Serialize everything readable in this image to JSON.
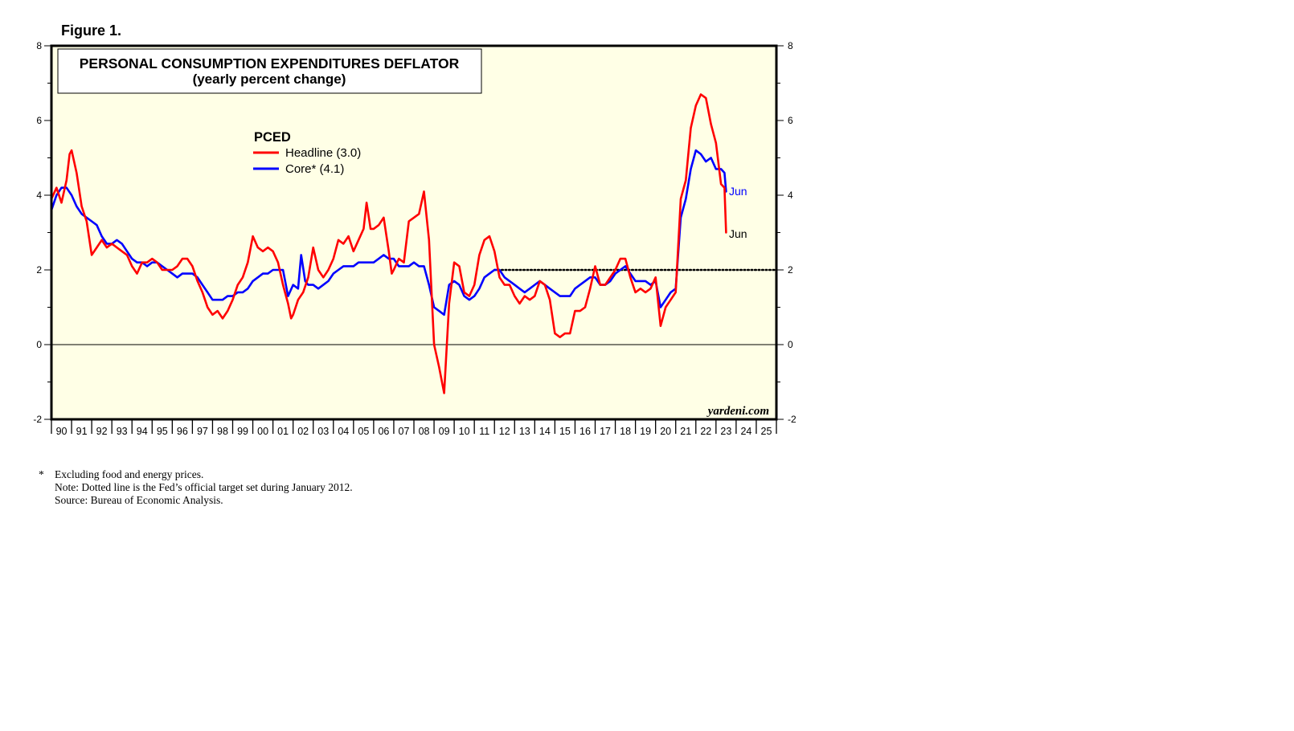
{
  "figure_label": "Figure 1.",
  "footnotes": {
    "star": "*",
    "line1": "Excluding food and energy prices.",
    "line2": "Note: Dotted line is the Fed’s official target set during January 2012.",
    "line3": "Source: Bureau of Economic Analysis."
  },
  "colors": {
    "headline": "#ff0000",
    "core": "#0000ff",
    "plot_bg": "#ffffe6",
    "frame": "#000000"
  },
  "chart_data": {
    "type": "line",
    "title": "PERSONAL CONSUMPTION EXPENDITURES DEFLATOR",
    "subtitle": "(yearly percent change)",
    "legend_title": "PCED",
    "legend_position": "upper-left",
    "xlim": [
      1990,
      2026
    ],
    "ylim": [
      -2,
      8
    ],
    "y_ticks": [
      -2,
      0,
      2,
      4,
      6,
      8
    ],
    "year_labels": [
      "90",
      "91",
      "92",
      "93",
      "94",
      "95",
      "96",
      "97",
      "98",
      "99",
      "00",
      "01",
      "02",
      "03",
      "04",
      "05",
      "06",
      "07",
      "08",
      "09",
      "10",
      "11",
      "12",
      "13",
      "14",
      "15",
      "16",
      "17",
      "18",
      "19",
      "20",
      "21",
      "22",
      "23",
      "24",
      "25"
    ],
    "zero_line": 0,
    "target": {
      "value": 2,
      "from": 2012.0,
      "to": 2026
    },
    "watermark": "yardeni.com",
    "series": [
      {
        "name": "Headline",
        "legend_label": "Headline (3.0)",
        "end_label": "Jun",
        "color": "#ff0000",
        "points": [
          [
            1990.0,
            3.9
          ],
          [
            1990.25,
            4.2
          ],
          [
            1990.5,
            3.8
          ],
          [
            1990.75,
            4.4
          ],
          [
            1990.9,
            5.1
          ],
          [
            1991.0,
            5.2
          ],
          [
            1991.25,
            4.6
          ],
          [
            1991.5,
            3.7
          ],
          [
            1991.75,
            3.3
          ],
          [
            1992.0,
            2.4
          ],
          [
            1992.25,
            2.6
          ],
          [
            1992.5,
            2.8
          ],
          [
            1992.75,
            2.6
          ],
          [
            1993.0,
            2.7
          ],
          [
            1993.25,
            2.6
          ],
          [
            1993.5,
            2.5
          ],
          [
            1993.75,
            2.4
          ],
          [
            1994.0,
            2.1
          ],
          [
            1994.25,
            1.9
          ],
          [
            1994.5,
            2.2
          ],
          [
            1994.75,
            2.2
          ],
          [
            1995.0,
            2.3
          ],
          [
            1995.25,
            2.2
          ],
          [
            1995.5,
            2.0
          ],
          [
            1995.75,
            2.0
          ],
          [
            1996.0,
            2.0
          ],
          [
            1996.25,
            2.1
          ],
          [
            1996.5,
            2.3
          ],
          [
            1996.75,
            2.3
          ],
          [
            1997.0,
            2.1
          ],
          [
            1997.25,
            1.7
          ],
          [
            1997.5,
            1.4
          ],
          [
            1997.75,
            1.0
          ],
          [
            1998.0,
            0.8
          ],
          [
            1998.25,
            0.9
          ],
          [
            1998.5,
            0.7
          ],
          [
            1998.75,
            0.9
          ],
          [
            1999.0,
            1.2
          ],
          [
            1999.25,
            1.6
          ],
          [
            1999.5,
            1.8
          ],
          [
            1999.75,
            2.2
          ],
          [
            2000.0,
            2.9
          ],
          [
            2000.25,
            2.6
          ],
          [
            2000.5,
            2.5
          ],
          [
            2000.75,
            2.6
          ],
          [
            2001.0,
            2.5
          ],
          [
            2001.25,
            2.2
          ],
          [
            2001.5,
            1.6
          ],
          [
            2001.75,
            1.1
          ],
          [
            2001.9,
            0.7
          ],
          [
            2002.0,
            0.8
          ],
          [
            2002.25,
            1.2
          ],
          [
            2002.5,
            1.4
          ],
          [
            2002.75,
            1.8
          ],
          [
            2003.0,
            2.6
          ],
          [
            2003.25,
            2.0
          ],
          [
            2003.5,
            1.8
          ],
          [
            2003.75,
            2.0
          ],
          [
            2004.0,
            2.3
          ],
          [
            2004.25,
            2.8
          ],
          [
            2004.5,
            2.7
          ],
          [
            2004.75,
            2.9
          ],
          [
            2005.0,
            2.5
          ],
          [
            2005.25,
            2.8
          ],
          [
            2005.5,
            3.1
          ],
          [
            2005.65,
            3.8
          ],
          [
            2005.85,
            3.1
          ],
          [
            2006.0,
            3.1
          ],
          [
            2006.25,
            3.2
          ],
          [
            2006.5,
            3.4
          ],
          [
            2006.75,
            2.5
          ],
          [
            2006.9,
            1.9
          ],
          [
            2007.0,
            2.0
          ],
          [
            2007.25,
            2.3
          ],
          [
            2007.5,
            2.2
          ],
          [
            2007.75,
            3.3
          ],
          [
            2008.0,
            3.4
          ],
          [
            2008.25,
            3.5
          ],
          [
            2008.5,
            4.1
          ],
          [
            2008.75,
            2.8
          ],
          [
            2009.0,
            0.0
          ],
          [
            2009.25,
            -0.6
          ],
          [
            2009.5,
            -1.3
          ],
          [
            2009.75,
            1.1
          ],
          [
            2010.0,
            2.2
          ],
          [
            2010.25,
            2.1
          ],
          [
            2010.5,
            1.4
          ],
          [
            2010.75,
            1.3
          ],
          [
            2011.0,
            1.6
          ],
          [
            2011.25,
            2.4
          ],
          [
            2011.5,
            2.8
          ],
          [
            2011.75,
            2.9
          ],
          [
            2012.0,
            2.5
          ],
          [
            2012.25,
            1.8
          ],
          [
            2012.5,
            1.6
          ],
          [
            2012.75,
            1.6
          ],
          [
            2013.0,
            1.3
          ],
          [
            2013.25,
            1.1
          ],
          [
            2013.5,
            1.3
          ],
          [
            2013.75,
            1.2
          ],
          [
            2014.0,
            1.3
          ],
          [
            2014.25,
            1.7
          ],
          [
            2014.5,
            1.6
          ],
          [
            2014.75,
            1.2
          ],
          [
            2015.0,
            0.3
          ],
          [
            2015.25,
            0.2
          ],
          [
            2015.5,
            0.3
          ],
          [
            2015.75,
            0.3
          ],
          [
            2016.0,
            0.9
          ],
          [
            2016.25,
            0.9
          ],
          [
            2016.5,
            1.0
          ],
          [
            2016.75,
            1.5
          ],
          [
            2017.0,
            2.1
          ],
          [
            2017.25,
            1.6
          ],
          [
            2017.5,
            1.6
          ],
          [
            2017.75,
            1.8
          ],
          [
            2018.0,
            2.0
          ],
          [
            2018.25,
            2.3
          ],
          [
            2018.5,
            2.3
          ],
          [
            2018.75,
            1.8
          ],
          [
            2019.0,
            1.4
          ],
          [
            2019.25,
            1.5
          ],
          [
            2019.5,
            1.4
          ],
          [
            2019.75,
            1.5
          ],
          [
            2020.0,
            1.8
          ],
          [
            2020.25,
            0.5
          ],
          [
            2020.5,
            1.0
          ],
          [
            2020.75,
            1.2
          ],
          [
            2021.0,
            1.4
          ],
          [
            2021.25,
            3.9
          ],
          [
            2021.5,
            4.4
          ],
          [
            2021.75,
            5.8
          ],
          [
            2022.0,
            6.4
          ],
          [
            2022.25,
            6.7
          ],
          [
            2022.5,
            6.6
          ],
          [
            2022.75,
            5.9
          ],
          [
            2023.0,
            5.4
          ],
          [
            2023.25,
            4.3
          ],
          [
            2023.42,
            4.2
          ],
          [
            2023.5,
            3.0
          ]
        ]
      },
      {
        "name": "Core",
        "legend_label": "Core* (4.1)",
        "end_label": "Jun",
        "color": "#0000ff",
        "points": [
          [
            1990.0,
            3.6
          ],
          [
            1990.25,
            4.0
          ],
          [
            1990.5,
            4.2
          ],
          [
            1990.75,
            4.2
          ],
          [
            1991.0,
            4.0
          ],
          [
            1991.25,
            3.7
          ],
          [
            1991.5,
            3.5
          ],
          [
            1991.75,
            3.4
          ],
          [
            1992.0,
            3.3
          ],
          [
            1992.25,
            3.2
          ],
          [
            1992.5,
            2.9
          ],
          [
            1992.75,
            2.7
          ],
          [
            1993.0,
            2.7
          ],
          [
            1993.25,
            2.8
          ],
          [
            1993.5,
            2.7
          ],
          [
            1993.75,
            2.5
          ],
          [
            1994.0,
            2.3
          ],
          [
            1994.25,
            2.2
          ],
          [
            1994.5,
            2.2
          ],
          [
            1994.75,
            2.1
          ],
          [
            1995.0,
            2.2
          ],
          [
            1995.25,
            2.2
          ],
          [
            1995.5,
            2.1
          ],
          [
            1995.75,
            2.0
          ],
          [
            1996.0,
            1.9
          ],
          [
            1996.25,
            1.8
          ],
          [
            1996.5,
            1.9
          ],
          [
            1996.75,
            1.9
          ],
          [
            1997.0,
            1.9
          ],
          [
            1997.25,
            1.8
          ],
          [
            1997.5,
            1.6
          ],
          [
            1997.75,
            1.4
          ],
          [
            1998.0,
            1.2
          ],
          [
            1998.25,
            1.2
          ],
          [
            1998.5,
            1.2
          ],
          [
            1998.75,
            1.3
          ],
          [
            1999.0,
            1.3
          ],
          [
            1999.25,
            1.4
          ],
          [
            1999.5,
            1.4
          ],
          [
            1999.75,
            1.5
          ],
          [
            2000.0,
            1.7
          ],
          [
            2000.25,
            1.8
          ],
          [
            2000.5,
            1.9
          ],
          [
            2000.75,
            1.9
          ],
          [
            2001.0,
            2.0
          ],
          [
            2001.25,
            2.0
          ],
          [
            2001.5,
            2.0
          ],
          [
            2001.75,
            1.3
          ],
          [
            2002.0,
            1.6
          ],
          [
            2002.25,
            1.5
          ],
          [
            2002.4,
            2.4
          ],
          [
            2002.6,
            1.7
          ],
          [
            2002.75,
            1.6
          ],
          [
            2003.0,
            1.6
          ],
          [
            2003.25,
            1.5
          ],
          [
            2003.5,
            1.6
          ],
          [
            2003.75,
            1.7
          ],
          [
            2004.0,
            1.9
          ],
          [
            2004.25,
            2.0
          ],
          [
            2004.5,
            2.1
          ],
          [
            2004.75,
            2.1
          ],
          [
            2005.0,
            2.1
          ],
          [
            2005.25,
            2.2
          ],
          [
            2005.5,
            2.2
          ],
          [
            2005.75,
            2.2
          ],
          [
            2006.0,
            2.2
          ],
          [
            2006.25,
            2.3
          ],
          [
            2006.5,
            2.4
          ],
          [
            2006.75,
            2.3
          ],
          [
            2007.0,
            2.3
          ],
          [
            2007.25,
            2.1
          ],
          [
            2007.5,
            2.1
          ],
          [
            2007.75,
            2.1
          ],
          [
            2008.0,
            2.2
          ],
          [
            2008.25,
            2.1
          ],
          [
            2008.5,
            2.1
          ],
          [
            2008.75,
            1.6
          ],
          [
            2009.0,
            1.0
          ],
          [
            2009.25,
            0.9
          ],
          [
            2009.5,
            0.8
          ],
          [
            2009.75,
            1.6
          ],
          [
            2010.0,
            1.7
          ],
          [
            2010.25,
            1.6
          ],
          [
            2010.5,
            1.3
          ],
          [
            2010.75,
            1.2
          ],
          [
            2011.0,
            1.3
          ],
          [
            2011.25,
            1.5
          ],
          [
            2011.5,
            1.8
          ],
          [
            2011.75,
            1.9
          ],
          [
            2012.0,
            2.0
          ],
          [
            2012.25,
            2.0
          ],
          [
            2012.5,
            1.8
          ],
          [
            2012.75,
            1.7
          ],
          [
            2013.0,
            1.6
          ],
          [
            2013.25,
            1.5
          ],
          [
            2013.5,
            1.4
          ],
          [
            2013.75,
            1.5
          ],
          [
            2014.0,
            1.6
          ],
          [
            2014.25,
            1.7
          ],
          [
            2014.5,
            1.6
          ],
          [
            2014.75,
            1.5
          ],
          [
            2015.0,
            1.4
          ],
          [
            2015.25,
            1.3
          ],
          [
            2015.5,
            1.3
          ],
          [
            2015.75,
            1.3
          ],
          [
            2016.0,
            1.5
          ],
          [
            2016.25,
            1.6
          ],
          [
            2016.5,
            1.7
          ],
          [
            2016.75,
            1.8
          ],
          [
            2017.0,
            1.8
          ],
          [
            2017.25,
            1.6
          ],
          [
            2017.5,
            1.6
          ],
          [
            2017.75,
            1.7
          ],
          [
            2018.0,
            1.9
          ],
          [
            2018.25,
            2.0
          ],
          [
            2018.5,
            2.1
          ],
          [
            2018.75,
            1.9
          ],
          [
            2019.0,
            1.7
          ],
          [
            2019.25,
            1.7
          ],
          [
            2019.5,
            1.7
          ],
          [
            2019.75,
            1.6
          ],
          [
            2020.0,
            1.7
          ],
          [
            2020.25,
            1.0
          ],
          [
            2020.5,
            1.2
          ],
          [
            2020.75,
            1.4
          ],
          [
            2021.0,
            1.5
          ],
          [
            2021.25,
            3.4
          ],
          [
            2021.5,
            3.9
          ],
          [
            2021.75,
            4.7
          ],
          [
            2022.0,
            5.2
          ],
          [
            2022.25,
            5.1
          ],
          [
            2022.5,
            4.9
          ],
          [
            2022.75,
            5.0
          ],
          [
            2023.0,
            4.7
          ],
          [
            2023.25,
            4.7
          ],
          [
            2023.42,
            4.6
          ],
          [
            2023.5,
            4.1
          ]
        ]
      }
    ]
  }
}
